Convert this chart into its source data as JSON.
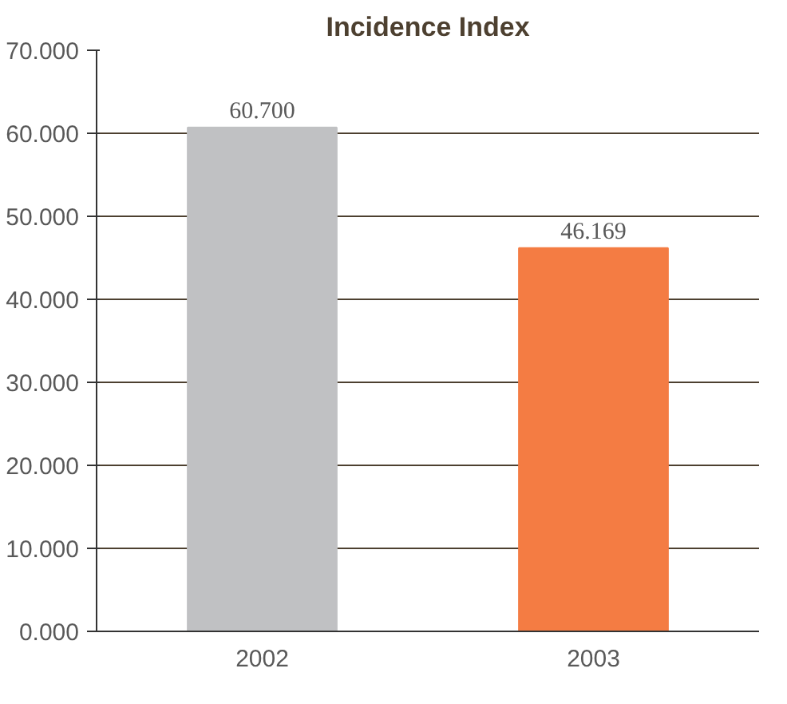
{
  "chart_data": {
    "type": "bar",
    "title": "Incidence Index",
    "categories": [
      "2002",
      "2003"
    ],
    "values": [
      60.7,
      46.169
    ],
    "colors": [
      "#c0c1c3",
      "#f47c43"
    ],
    "value_labels": [
      "60.700",
      "46.169"
    ],
    "ylim": [
      0,
      70
    ],
    "yticks": [
      {
        "value": 0,
        "label": "0.000"
      },
      {
        "value": 10,
        "label": "10.000"
      },
      {
        "value": 20,
        "label": "20.000"
      },
      {
        "value": 30,
        "label": "30.000"
      },
      {
        "value": 40,
        "label": "40.000"
      },
      {
        "value": 50,
        "label": "50.000"
      },
      {
        "value": 60,
        "label": "60.000"
      },
      {
        "value": 70,
        "label": "70.000"
      }
    ],
    "grid": "y"
  }
}
